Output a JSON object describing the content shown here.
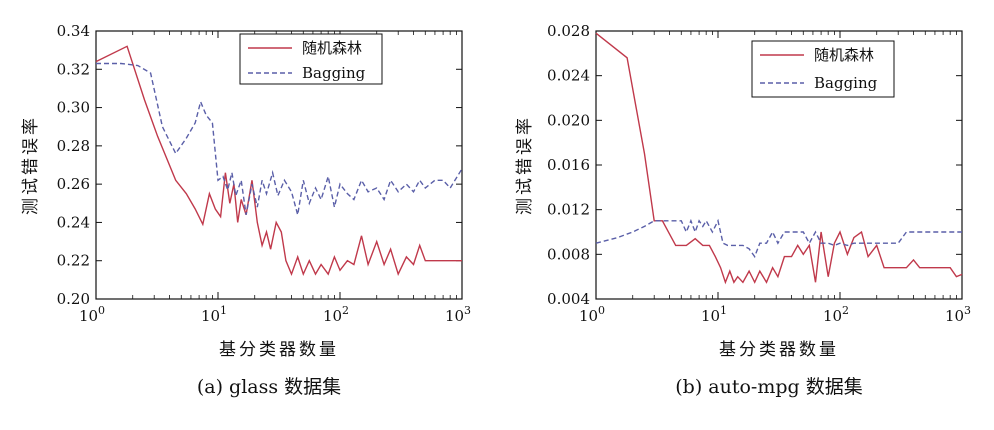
{
  "chart_data": [
    {
      "type": "line",
      "caption": "(a) glass 数据集",
      "xlabel": "基分类器数量",
      "ylabel": "测试错误率",
      "xscale": "log",
      "xlim": [
        1,
        1000
      ],
      "ylim": [
        0.2,
        0.34
      ],
      "xticks": [
        1,
        10,
        100,
        1000
      ],
      "xtick_labels": [
        {
          "base": "10",
          "exp": "0"
        },
        {
          "base": "10",
          "exp": "1"
        },
        {
          "base": "10",
          "exp": "2"
        },
        {
          "base": "10",
          "exp": "3"
        }
      ],
      "yticks": [
        0.2,
        0.22,
        0.24,
        0.26,
        0.28,
        0.3,
        0.32,
        0.34
      ],
      "ytick_labels": [
        "0.20",
        "0.22",
        "0.24",
        "0.26",
        "0.28",
        "0.30",
        "0.32",
        "0.34"
      ],
      "legend": {
        "position": "top-right"
      },
      "grid": false,
      "series": [
        {
          "name": "随机森林",
          "style": "solid",
          "color": "#c0394b",
          "x": [
            1,
            1.8,
            2.5,
            3.2,
            4.5,
            5.5,
            6.5,
            7.5,
            8.5,
            9.5,
            10.5,
            11.5,
            12.5,
            13.5,
            14.5,
            15.5,
            17,
            19,
            21,
            23,
            25,
            27,
            30,
            33,
            36,
            40,
            45,
            50,
            56,
            63,
            70,
            80,
            90,
            100,
            115,
            130,
            150,
            170,
            200,
            230,
            260,
            300,
            350,
            400,
            450,
            500,
            600,
            700,
            800,
            1000
          ],
          "y": [
            0.324,
            0.332,
            0.304,
            0.285,
            0.262,
            0.255,
            0.247,
            0.239,
            0.255,
            0.247,
            0.243,
            0.266,
            0.25,
            0.26,
            0.24,
            0.252,
            0.244,
            0.262,
            0.24,
            0.228,
            0.235,
            0.226,
            0.24,
            0.235,
            0.22,
            0.213,
            0.222,
            0.213,
            0.22,
            0.213,
            0.218,
            0.213,
            0.222,
            0.215,
            0.22,
            0.218,
            0.233,
            0.218,
            0.23,
            0.218,
            0.226,
            0.213,
            0.222,
            0.218,
            0.228,
            0.22,
            0.22,
            0.22,
            0.22,
            0.22
          ]
        },
        {
          "name": "Bagging",
          "style": "dashed",
          "color": "#5a5fa8",
          "x": [
            1,
            1.6,
            2.2,
            2.8,
            3.5,
            4.5,
            5.5,
            6.5,
            7.2,
            8,
            9,
            10,
            11,
            12,
            13,
            14,
            15.5,
            17,
            19,
            21,
            23,
            25,
            28,
            31,
            35,
            40,
            45,
            50,
            56,
            63,
            70,
            80,
            90,
            100,
            115,
            130,
            150,
            170,
            200,
            230,
            260,
            300,
            350,
            400,
            450,
            500,
            600,
            700,
            800,
            1000
          ],
          "y": [
            0.323,
            0.323,
            0.322,
            0.318,
            0.29,
            0.276,
            0.284,
            0.292,
            0.303,
            0.296,
            0.292,
            0.262,
            0.264,
            0.257,
            0.266,
            0.254,
            0.262,
            0.244,
            0.26,
            0.248,
            0.262,
            0.255,
            0.266,
            0.254,
            0.262,
            0.256,
            0.244,
            0.262,
            0.25,
            0.258,
            0.252,
            0.264,
            0.248,
            0.26,
            0.255,
            0.252,
            0.262,
            0.256,
            0.258,
            0.252,
            0.262,
            0.256,
            0.26,
            0.256,
            0.262,
            0.258,
            0.262,
            0.262,
            0.258,
            0.268
          ]
        }
      ]
    },
    {
      "type": "line",
      "caption": "(b) auto-mpg 数据集",
      "xlabel": "基分类器数量",
      "ylabel": "测试错误率",
      "xscale": "log",
      "xlim": [
        1,
        1000
      ],
      "ylim": [
        0.004,
        0.028
      ],
      "xticks": [
        1,
        10,
        100,
        1000
      ],
      "xtick_labels": [
        {
          "base": "10",
          "exp": "0"
        },
        {
          "base": "10",
          "exp": "1"
        },
        {
          "base": "10",
          "exp": "2"
        },
        {
          "base": "10",
          "exp": "3"
        }
      ],
      "yticks": [
        0.004,
        0.008,
        0.012,
        0.016,
        0.02,
        0.024,
        0.028
      ],
      "ytick_labels": [
        "0.004",
        "0.008",
        "0.012",
        "0.016",
        "0.020",
        "0.024",
        "0.028"
      ],
      "legend": {
        "position": "top-right"
      },
      "grid": false,
      "series": [
        {
          "name": "随机森林",
          "style": "solid",
          "color": "#c0394b",
          "x": [
            1,
            1.8,
            2.5,
            3,
            3.5,
            4.5,
            5.5,
            6.5,
            7.5,
            8.5,
            9.5,
            10.5,
            11.5,
            12.5,
            13.5,
            14.5,
            16,
            18,
            20,
            22,
            25,
            28,
            31,
            35,
            40,
            45,
            50,
            56,
            63,
            70,
            80,
            90,
            100,
            115,
            130,
            150,
            170,
            200,
            230,
            260,
            300,
            350,
            400,
            450,
            500,
            600,
            700,
            800,
            900,
            1000
          ],
          "y": [
            0.0278,
            0.0256,
            0.017,
            0.011,
            0.011,
            0.0088,
            0.0088,
            0.0094,
            0.0088,
            0.0088,
            0.0078,
            0.0068,
            0.0055,
            0.0065,
            0.0055,
            0.006,
            0.0055,
            0.0065,
            0.0055,
            0.0065,
            0.0055,
            0.0068,
            0.006,
            0.0078,
            0.0078,
            0.0088,
            0.008,
            0.0088,
            0.0055,
            0.01,
            0.006,
            0.009,
            0.01,
            0.008,
            0.0095,
            0.01,
            0.0078,
            0.0088,
            0.0068,
            0.0068,
            0.0068,
            0.0068,
            0.0075,
            0.0068,
            0.0068,
            0.0068,
            0.0068,
            0.0068,
            0.006,
            0.0062
          ]
        },
        {
          "name": "Bagging",
          "style": "dashed",
          "color": "#5a5fa8",
          "x": [
            1,
            1.5,
            2,
            2.5,
            3,
            3.5,
            4,
            4.5,
            5,
            5.5,
            6,
            6.5,
            7,
            7.5,
            8,
            9,
            10,
            11,
            12,
            13,
            14,
            16,
            18,
            20,
            22,
            25,
            28,
            31,
            35,
            40,
            45,
            50,
            56,
            63,
            70,
            80,
            90,
            100,
            115,
            130,
            150,
            170,
            200,
            230,
            260,
            300,
            350,
            400,
            500,
            1000
          ],
          "y": [
            0.009,
            0.0095,
            0.01,
            0.0105,
            0.011,
            0.011,
            0.011,
            0.011,
            0.011,
            0.01,
            0.011,
            0.01,
            0.011,
            0.0105,
            0.011,
            0.01,
            0.011,
            0.009,
            0.0088,
            0.0088,
            0.0088,
            0.0088,
            0.0085,
            0.0078,
            0.009,
            0.009,
            0.01,
            0.009,
            0.01,
            0.01,
            0.01,
            0.01,
            0.009,
            0.01,
            0.009,
            0.009,
            0.0088,
            0.009,
            0.0088,
            0.009,
            0.009,
            0.009,
            0.009,
            0.009,
            0.009,
            0.009,
            0.01,
            0.01,
            0.01,
            0.01
          ]
        }
      ]
    }
  ]
}
